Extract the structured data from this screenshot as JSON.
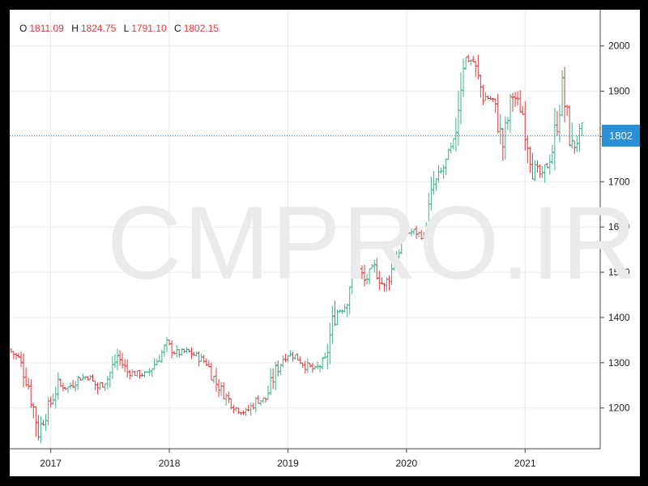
{
  "ohlc": {
    "o_label": "O",
    "o_value": "1811.09",
    "h_label": "H",
    "h_value": "1824.75",
    "l_label": "L",
    "l_value": "1791.10",
    "c_label": "C",
    "c_value": "1802.15"
  },
  "watermark": "CMPRO.IR",
  "last_price_label": "1802",
  "colors": {
    "up": "#3eb08e",
    "down": "#e0393e",
    "grid": "#ececec",
    "axis": "#444444",
    "tag": "#2a8fd6",
    "price_line": "#2a8fd6"
  },
  "chart_data": {
    "type": "ohlc",
    "title": "",
    "xlabel": "",
    "ylabel": "",
    "ylim": [
      1110,
      2080
    ],
    "xlim": [
      "2016-09",
      "2021-08"
    ],
    "y_ticks": [
      1200,
      1300,
      1400,
      1500,
      1600,
      1700,
      1800,
      1900,
      2000
    ],
    "x_ticks": [
      {
        "label": "2017",
        "x": "2017-01"
      },
      {
        "label": "2018",
        "x": "2018-01"
      },
      {
        "label": "2019",
        "x": "2019-01"
      },
      {
        "label": "2020",
        "x": "2020-01"
      },
      {
        "label": "2021",
        "x": "2021-01"
      }
    ],
    "grid": true,
    "last_price": 1802,
    "series": [
      {
        "values": [
          {
            "x": "2016-09",
            "y": 1330
          },
          {
            "x": "2016-10",
            "y": 1310
          },
          {
            "x": "2016-11",
            "y": 1250
          },
          {
            "x": "2016-12",
            "y": 1150
          },
          {
            "x": "2017-01",
            "y": 1200
          },
          {
            "x": "2017-02",
            "y": 1250
          },
          {
            "x": "2017-03",
            "y": 1245
          },
          {
            "x": "2017-04",
            "y": 1265
          },
          {
            "x": "2017-05",
            "y": 1270
          },
          {
            "x": "2017-06",
            "y": 1245
          },
          {
            "x": "2017-07",
            "y": 1265
          },
          {
            "x": "2017-08",
            "y": 1315
          },
          {
            "x": "2017-09",
            "y": 1280
          },
          {
            "x": "2017-10",
            "y": 1275
          },
          {
            "x": "2017-11",
            "y": 1275
          },
          {
            "x": "2017-12",
            "y": 1305
          },
          {
            "x": "2018-01",
            "y": 1340
          },
          {
            "x": "2018-02",
            "y": 1320
          },
          {
            "x": "2018-03",
            "y": 1325
          },
          {
            "x": "2018-04",
            "y": 1315
          },
          {
            "x": "2018-05",
            "y": 1300
          },
          {
            "x": "2018-06",
            "y": 1255
          },
          {
            "x": "2018-07",
            "y": 1225
          },
          {
            "x": "2018-08",
            "y": 1200
          },
          {
            "x": "2018-09",
            "y": 1190
          },
          {
            "x": "2018-10",
            "y": 1215
          },
          {
            "x": "2018-11",
            "y": 1220
          },
          {
            "x": "2018-12",
            "y": 1280
          },
          {
            "x": "2019-01",
            "y": 1320
          },
          {
            "x": "2019-02",
            "y": 1315
          },
          {
            "x": "2019-03",
            "y": 1295
          },
          {
            "x": "2019-04",
            "y": 1283
          },
          {
            "x": "2019-05",
            "y": 1305
          },
          {
            "x": "2019-06",
            "y": 1410
          },
          {
            "x": "2019-07",
            "y": 1425
          },
          {
            "x": "2019-08",
            "y": 1525
          },
          {
            "x": "2019-09",
            "y": 1480
          },
          {
            "x": "2019-10",
            "y": 1510
          },
          {
            "x": "2019-11",
            "y": 1465
          },
          {
            "x": "2019-12",
            "y": 1520
          },
          {
            "x": "2020-01",
            "y": 1585
          },
          {
            "x": "2020-02",
            "y": 1590
          },
          {
            "x": "2020-03",
            "y": 1580
          },
          {
            "x": "2020-04",
            "y": 1690
          },
          {
            "x": "2020-05",
            "y": 1730
          },
          {
            "x": "2020-06",
            "y": 1780
          },
          {
            "x": "2020-07",
            "y": 1975
          },
          {
            "x": "2020-08",
            "y": 1965
          },
          {
            "x": "2020-09",
            "y": 1890
          },
          {
            "x": "2020-10",
            "y": 1880
          },
          {
            "x": "2020-11",
            "y": 1780
          },
          {
            "x": "2020-12",
            "y": 1895
          },
          {
            "x": "2021-01",
            "y": 1850
          },
          {
            "x": "2021-02",
            "y": 1735
          },
          {
            "x": "2021-03",
            "y": 1710
          },
          {
            "x": "2021-04",
            "y": 1770
          },
          {
            "x": "2021-05",
            "y": 1905
          },
          {
            "x": "2021-06",
            "y": 1770
          },
          {
            "x": "2021-07",
            "y": 1815
          }
        ]
      }
    ]
  }
}
